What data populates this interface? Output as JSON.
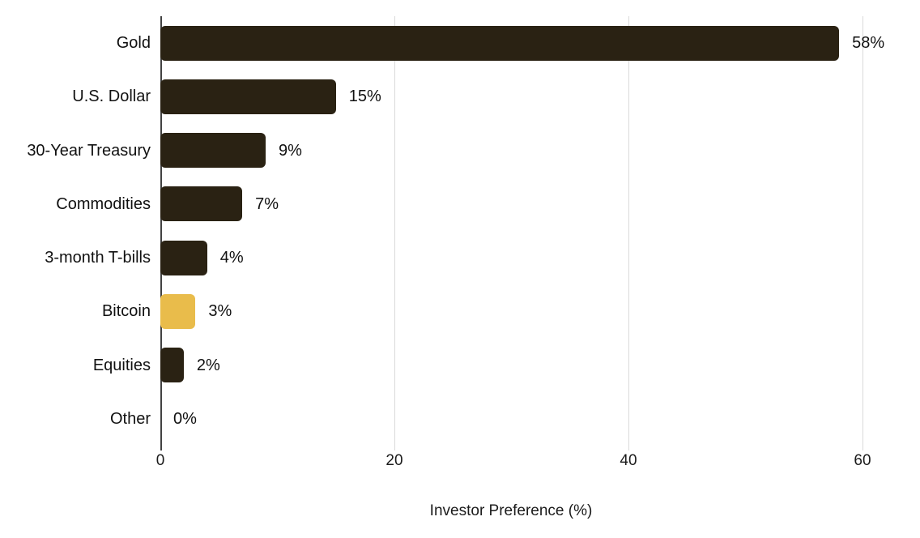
{
  "chart_data": {
    "type": "bar",
    "orientation": "horizontal",
    "title": "",
    "xlabel": "Investor Preference (%)",
    "ylabel": "",
    "categories": [
      "Gold",
      "U.S. Dollar",
      "30-Year Treasury",
      "Commodities",
      "3-month T-bills",
      "Bitcoin",
      "Equities",
      "Other"
    ],
    "values": [
      58,
      15,
      9,
      7,
      4,
      3,
      2,
      0
    ],
    "value_labels": [
      "58%",
      "15%",
      "9%",
      "7%",
      "4%",
      "3%",
      "2%",
      "0%"
    ],
    "highlight_category": "Bitcoin",
    "x_ticks": [
      0,
      20,
      40,
      60
    ],
    "x_tick_labels": [
      "0",
      "20",
      "40",
      "60"
    ],
    "xlim": [
      0,
      60
    ],
    "grid": true,
    "legend": "none",
    "colors": {
      "bar_default": "#2a2213",
      "bar_highlight": "#e9bc4b",
      "gridline": "#dadada",
      "axis_line": "#424242",
      "text": "#111111"
    }
  }
}
